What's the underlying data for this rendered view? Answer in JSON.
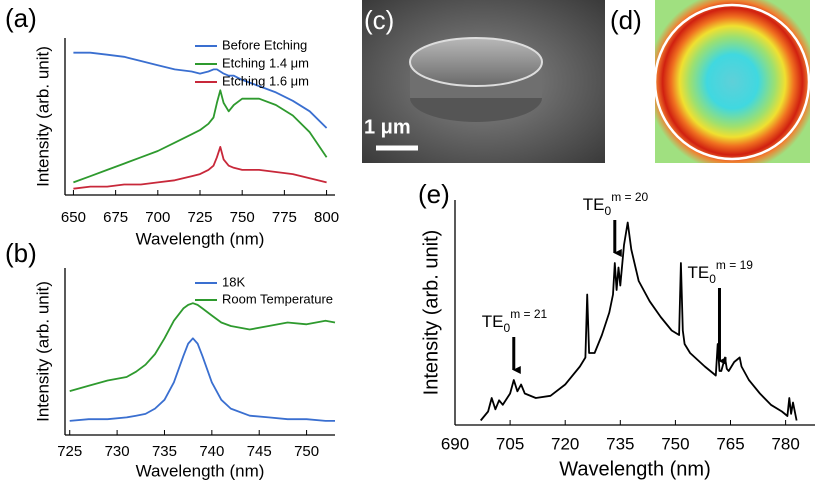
{
  "chart_data": [
    {
      "type": "line",
      "panel_label": "(a)",
      "x_label": "Wavelength (nm)",
      "y_label": "Intensity (arb. unit)",
      "x": [
        650,
        660,
        670,
        680,
        690,
        700,
        710,
        720,
        725,
        730,
        733,
        735,
        737,
        739,
        742,
        745,
        750,
        760,
        770,
        780,
        790,
        800
      ],
      "series": [
        {
          "name": "Before Etching",
          "color": "#3a6fd0",
          "values": [
            0.68,
            0.68,
            0.67,
            0.66,
            0.64,
            0.62,
            0.6,
            0.59,
            0.58,
            0.59,
            0.6,
            0.6,
            0.59,
            0.58,
            0.57,
            0.57,
            0.55,
            0.52,
            0.49,
            0.45,
            0.4,
            0.32
          ]
        },
        {
          "name": "Etching 1.4 μm",
          "color": "#2e9a2e",
          "values": [
            0.06,
            0.09,
            0.12,
            0.15,
            0.18,
            0.21,
            0.25,
            0.29,
            0.31,
            0.34,
            0.37,
            0.44,
            0.5,
            0.44,
            0.4,
            0.43,
            0.46,
            0.46,
            0.43,
            0.38,
            0.3,
            0.18
          ]
        },
        {
          "name": "Etching 1.6 μm",
          "color": "#c8283a",
          "values": [
            0.03,
            0.04,
            0.04,
            0.05,
            0.05,
            0.06,
            0.07,
            0.09,
            0.1,
            0.12,
            0.14,
            0.18,
            0.23,
            0.17,
            0.14,
            0.13,
            0.12,
            0.12,
            0.11,
            0.1,
            0.08,
            0.06
          ]
        }
      ],
      "xlim": [
        645,
        805
      ],
      "xticks": [
        650,
        675,
        700,
        725,
        750,
        775,
        800
      ],
      "ylim": [
        0,
        0.75
      ]
    },
    {
      "type": "line",
      "panel_label": "(b)",
      "x_label": "Wavelength (nm)",
      "y_label": "Intensity (arb. unit)",
      "x": [
        725,
        727,
        729,
        731,
        732,
        733,
        734,
        735,
        736,
        737,
        737.5,
        738,
        738.5,
        739,
        740,
        741,
        742,
        744,
        746,
        748,
        750,
        752,
        753
      ],
      "series": [
        {
          "name": "18K",
          "color": "#3a6fd0",
          "values": [
            0.08,
            0.09,
            0.09,
            0.1,
            0.11,
            0.12,
            0.15,
            0.2,
            0.3,
            0.45,
            0.52,
            0.55,
            0.52,
            0.45,
            0.3,
            0.2,
            0.15,
            0.11,
            0.1,
            0.09,
            0.09,
            0.08,
            0.08
          ]
        },
        {
          "name": "Room Temperature",
          "color": "#2e9a2e",
          "values": [
            0.25,
            0.28,
            0.31,
            0.33,
            0.36,
            0.4,
            0.46,
            0.55,
            0.65,
            0.72,
            0.74,
            0.75,
            0.74,
            0.72,
            0.68,
            0.64,
            0.62,
            0.6,
            0.62,
            0.64,
            0.63,
            0.65,
            0.64
          ]
        }
      ],
      "xlim": [
        724.5,
        753
      ],
      "xticks": [
        725,
        730,
        735,
        740,
        745,
        750
      ],
      "ylim": [
        0,
        0.95
      ]
    },
    {
      "type": "line",
      "panel_label": "(e)",
      "x_label": "Wavelength (nm)",
      "y_label": "Intensity (arb. unit)",
      "x": [
        697,
        699,
        700,
        701,
        702,
        703,
        705,
        706,
        707,
        708,
        709,
        712,
        716,
        720,
        724,
        725.5,
        726,
        726.5,
        728,
        730,
        732,
        733,
        733.5,
        734,
        734.5,
        735,
        736,
        737,
        738,
        740,
        743,
        746,
        749,
        751,
        751.5,
        752,
        752.5,
        754,
        758,
        761,
        761.5,
        762,
        762.5,
        763.5,
        764,
        764.5,
        766,
        767.5,
        768,
        770,
        773,
        776,
        779,
        780.5,
        781,
        781.5,
        782,
        783
      ],
      "series": [
        {
          "color": "#000000",
          "values": [
            0.02,
            0.06,
            0.12,
            0.07,
            0.11,
            0.09,
            0.14,
            0.2,
            0.15,
            0.18,
            0.14,
            0.12,
            0.13,
            0.18,
            0.26,
            0.3,
            0.58,
            0.32,
            0.32,
            0.4,
            0.5,
            0.58,
            0.72,
            0.6,
            0.7,
            0.62,
            0.8,
            0.9,
            0.78,
            0.64,
            0.55,
            0.48,
            0.42,
            0.4,
            0.72,
            0.42,
            0.36,
            0.32,
            0.26,
            0.22,
            0.36,
            0.24,
            0.24,
            0.3,
            0.25,
            0.24,
            0.28,
            0.3,
            0.26,
            0.2,
            0.14,
            0.09,
            0.06,
            0.04,
            0.12,
            0.05,
            0.1,
            0.02
          ]
        }
      ],
      "annotations": [
        {
          "base": "TE",
          "sub": "0",
          "sup": "m = 21",
          "x": 706
        },
        {
          "base": "TE",
          "sub": "0",
          "sup": "m = 20",
          "x": 733.5
        },
        {
          "base": "TE",
          "sub": "0",
          "sup": "m = 19",
          "x": 762
        }
      ],
      "xlim": [
        690,
        788
      ],
      "xticks": [
        690,
        705,
        720,
        735,
        750,
        765,
        780
      ],
      "ylim": [
        0,
        1
      ]
    }
  ],
  "images": [
    {
      "panel_label": "(c)",
      "scale_bar": "1 μm"
    },
    {
      "panel_label": "(d)"
    }
  ]
}
